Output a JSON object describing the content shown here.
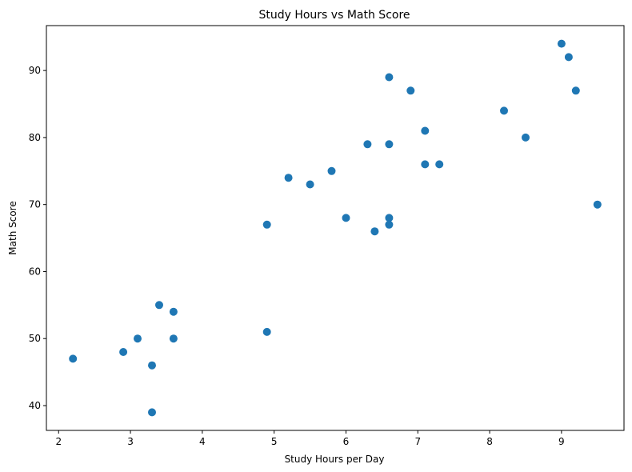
{
  "chart_data": {
    "type": "scatter",
    "title": "Study Hours vs Math Score",
    "xlabel": "Study Hours per Day",
    "ylabel": "Math Score",
    "xlim": [
      1.83,
      9.87
    ],
    "ylim": [
      36.3,
      96.7
    ],
    "xticks": [
      2,
      3,
      4,
      5,
      6,
      7,
      8,
      9
    ],
    "yticks": [
      40,
      50,
      60,
      70,
      80,
      90
    ],
    "marker_color": "#1f77b4",
    "grid": false,
    "legend": "none",
    "series": [
      {
        "points": [
          [
            2.2,
            47
          ],
          [
            2.9,
            48
          ],
          [
            3.1,
            50
          ],
          [
            3.3,
            46
          ],
          [
            3.3,
            39
          ],
          [
            3.4,
            55
          ],
          [
            3.6,
            54
          ],
          [
            3.6,
            50
          ],
          [
            4.9,
            67
          ],
          [
            4.9,
            51
          ],
          [
            5.2,
            74
          ],
          [
            5.5,
            73
          ],
          [
            5.8,
            75
          ],
          [
            6.0,
            68
          ],
          [
            6.3,
            79
          ],
          [
            6.4,
            66
          ],
          [
            6.6,
            89
          ],
          [
            6.6,
            79
          ],
          [
            6.6,
            68
          ],
          [
            6.6,
            67
          ],
          [
            6.9,
            87
          ],
          [
            7.1,
            81
          ],
          [
            7.1,
            76
          ],
          [
            7.3,
            76
          ],
          [
            8.2,
            84
          ],
          [
            8.5,
            80
          ],
          [
            9.0,
            94
          ],
          [
            9.1,
            92
          ],
          [
            9.2,
            87
          ],
          [
            9.5,
            70
          ]
        ]
      }
    ]
  }
}
